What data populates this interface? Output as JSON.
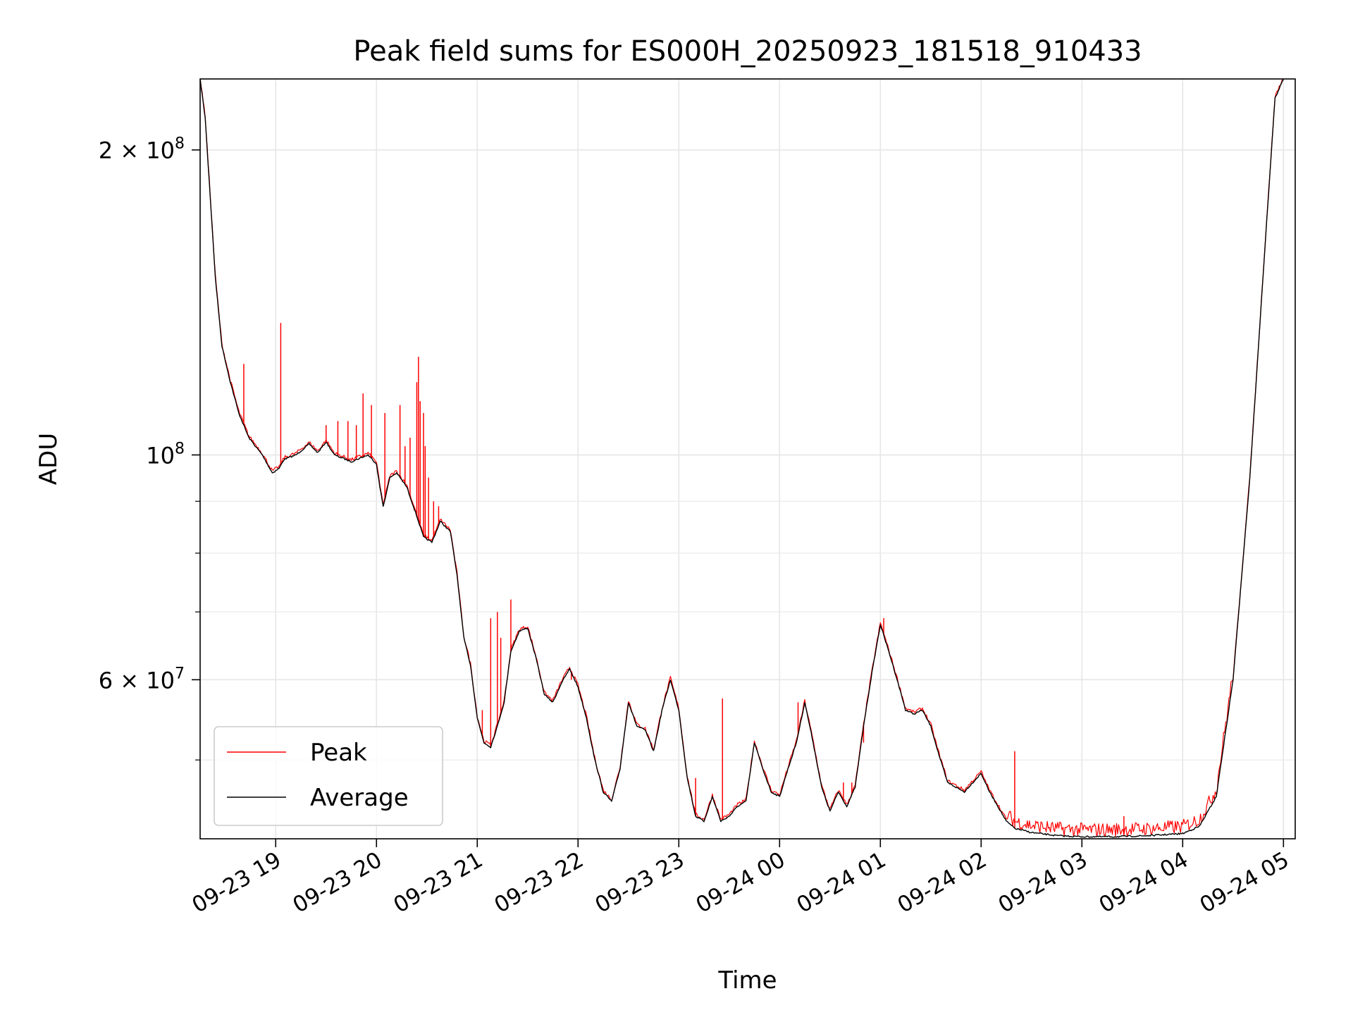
{
  "chart_data": {
    "type": "line",
    "title": "Peak field sums for ES000H_20250923_181518_910433",
    "xlabel": "Time",
    "ylabel": "ADU",
    "y_scale": "log",
    "ylim": [
      41800000,
      235000000
    ],
    "xlim": [
      "2025-09-23 18:15",
      "2025-09-24 05:07"
    ],
    "x_ticks": [
      {
        "t": "2025-09-23 19:00",
        "label": "09-23 19"
      },
      {
        "t": "2025-09-23 20:00",
        "label": "09-23 20"
      },
      {
        "t": "2025-09-23 21:00",
        "label": "09-23 21"
      },
      {
        "t": "2025-09-23 22:00",
        "label": "09-23 22"
      },
      {
        "t": "2025-09-23 23:00",
        "label": "09-23 23"
      },
      {
        "t": "2025-09-24 00:00",
        "label": "09-24 00"
      },
      {
        "t": "2025-09-24 01:00",
        "label": "09-24 01"
      },
      {
        "t": "2025-09-24 02:00",
        "label": "09-24 02"
      },
      {
        "t": "2025-09-24 03:00",
        "label": "09-24 03"
      },
      {
        "t": "2025-09-24 04:00",
        "label": "09-24 04"
      },
      {
        "t": "2025-09-24 05:00",
        "label": "09-24 05"
      }
    ],
    "y_major_ticks": [
      {
        "value": 200000000,
        "mantissa": "2",
        "exponent": "8"
      },
      {
        "value": 100000000,
        "mantissa": "",
        "exponent": "8"
      },
      {
        "value": 60000000,
        "mantissa": "6",
        "exponent": "7"
      }
    ],
    "y_minor_ticks": [
      50000000,
      70000000,
      80000000,
      90000000
    ],
    "grid": true,
    "legend": {
      "position": "lower-left"
    },
    "series": [
      {
        "name": "Average",
        "color": "#000000",
        "points": [
          [
            "2025-09-23 18:15",
            235000000
          ],
          [
            "2025-09-23 18:18",
            215000000
          ],
          [
            "2025-09-23 18:21",
            180000000
          ],
          [
            "2025-09-23 18:24",
            150000000
          ],
          [
            "2025-09-23 18:28",
            128000000
          ],
          [
            "2025-09-23 18:33",
            118000000
          ],
          [
            "2025-09-23 18:38",
            110000000
          ],
          [
            "2025-09-23 18:44",
            104000000
          ],
          [
            "2025-09-23 18:52",
            100000000
          ],
          [
            "2025-09-23 18:58",
            96000000
          ],
          [
            "2025-09-23 19:02",
            97000000
          ],
          [
            "2025-09-23 19:05",
            99000000
          ],
          [
            "2025-09-23 19:12",
            100000000
          ],
          [
            "2025-09-23 19:20",
            102500000
          ],
          [
            "2025-09-23 19:25",
            100500000
          ],
          [
            "2025-09-23 19:30",
            103000000
          ],
          [
            "2025-09-23 19:35",
            100000000
          ],
          [
            "2025-09-23 19:45",
            98500000
          ],
          [
            "2025-09-23 19:55",
            100000000
          ],
          [
            "2025-09-23 20:00",
            98000000
          ],
          [
            "2025-09-23 20:02",
            93000000
          ],
          [
            "2025-09-23 20:04",
            89000000
          ],
          [
            "2025-09-23 20:08",
            95000000
          ],
          [
            "2025-09-23 20:12",
            96000000
          ],
          [
            "2025-09-23 20:18",
            93000000
          ],
          [
            "2025-09-23 20:22",
            89000000
          ],
          [
            "2025-09-23 20:25",
            86000000
          ],
          [
            "2025-09-23 20:28",
            83000000
          ],
          [
            "2025-09-23 20:33",
            82000000
          ],
          [
            "2025-09-23 20:38",
            86000000
          ],
          [
            "2025-09-23 20:44",
            84000000
          ],
          [
            "2025-09-23 20:48",
            76000000
          ],
          [
            "2025-09-23 20:52",
            66000000
          ],
          [
            "2025-09-23 20:56",
            62000000
          ],
          [
            "2025-09-23 21:00",
            55000000
          ],
          [
            "2025-09-23 21:04",
            52000000
          ],
          [
            "2025-09-23 21:08",
            51500000
          ],
          [
            "2025-09-23 21:12",
            54000000
          ],
          [
            "2025-09-23 21:16",
            57000000
          ],
          [
            "2025-09-23 21:20",
            64000000
          ],
          [
            "2025-09-23 21:25",
            67000000
          ],
          [
            "2025-09-23 21:30",
            67500000
          ],
          [
            "2025-09-23 21:35",
            63000000
          ],
          [
            "2025-09-23 21:40",
            58000000
          ],
          [
            "2025-09-23 21:45",
            57000000
          ],
          [
            "2025-09-23 21:50",
            59500000
          ],
          [
            "2025-09-23 21:55",
            61500000
          ],
          [
            "2025-09-23 22:00",
            59000000
          ],
          [
            "2025-09-23 22:05",
            55000000
          ],
          [
            "2025-09-23 22:10",
            50000000
          ],
          [
            "2025-09-23 22:15",
            46500000
          ],
          [
            "2025-09-23 22:20",
            45500000
          ],
          [
            "2025-09-23 22:25",
            49000000
          ],
          [
            "2025-09-23 22:30",
            57000000
          ],
          [
            "2025-09-23 22:35",
            54000000
          ],
          [
            "2025-09-23 22:40",
            53500000
          ],
          [
            "2025-09-23 22:45",
            51000000
          ],
          [
            "2025-09-23 22:50",
            56000000
          ],
          [
            "2025-09-23 22:55",
            60000000
          ],
          [
            "2025-09-23 23:00",
            56000000
          ],
          [
            "2025-09-23 23:05",
            48000000
          ],
          [
            "2025-09-23 23:10",
            44000000
          ],
          [
            "2025-09-23 23:15",
            43500000
          ],
          [
            "2025-09-23 23:20",
            46000000
          ],
          [
            "2025-09-23 23:25",
            43500000
          ],
          [
            "2025-09-23 23:30",
            44000000
          ],
          [
            "2025-09-23 23:35",
            45000000
          ],
          [
            "2025-09-23 23:40",
            45500000
          ],
          [
            "2025-09-23 23:45",
            52000000
          ],
          [
            "2025-09-23 23:50",
            49000000
          ],
          [
            "2025-09-23 23:55",
            46500000
          ],
          [
            "2025-09-24 00:00",
            46000000
          ],
          [
            "2025-09-24 00:05",
            49000000
          ],
          [
            "2025-09-24 00:10",
            52000000
          ],
          [
            "2025-09-24 00:15",
            57000000
          ],
          [
            "2025-09-24 00:20",
            52000000
          ],
          [
            "2025-09-24 00:25",
            47000000
          ],
          [
            "2025-09-24 00:30",
            44500000
          ],
          [
            "2025-09-24 00:35",
            46500000
          ],
          [
            "2025-09-24 00:40",
            45000000
          ],
          [
            "2025-09-24 00:45",
            47000000
          ],
          [
            "2025-09-24 00:50",
            54000000
          ],
          [
            "2025-09-24 00:55",
            61000000
          ],
          [
            "2025-09-24 01:00",
            68000000
          ],
          [
            "2025-09-24 01:05",
            64000000
          ],
          [
            "2025-09-24 01:10",
            60000000
          ],
          [
            "2025-09-24 01:15",
            56000000
          ],
          [
            "2025-09-24 01:20",
            55500000
          ],
          [
            "2025-09-24 01:25",
            56000000
          ],
          [
            "2025-09-24 01:30",
            54000000
          ],
          [
            "2025-09-24 01:35",
            50500000
          ],
          [
            "2025-09-24 01:40",
            47500000
          ],
          [
            "2025-09-24 01:45",
            47000000
          ],
          [
            "2025-09-24 01:50",
            46500000
          ],
          [
            "2025-09-24 01:55",
            47500000
          ],
          [
            "2025-09-24 02:00",
            48500000
          ],
          [
            "2025-09-24 02:05",
            46500000
          ],
          [
            "2025-09-24 02:10",
            45000000
          ],
          [
            "2025-09-24 02:15",
            43500000
          ],
          [
            "2025-09-24 02:20",
            42800000
          ],
          [
            "2025-09-24 02:30",
            42400000
          ],
          [
            "2025-09-24 02:45",
            42100000
          ],
          [
            "2025-09-24 03:00",
            42000000
          ],
          [
            "2025-09-24 03:20",
            42000000
          ],
          [
            "2025-09-24 03:40",
            42100000
          ],
          [
            "2025-09-24 04:00",
            42300000
          ],
          [
            "2025-09-24 04:10",
            43000000
          ],
          [
            "2025-09-24 04:20",
            46000000
          ],
          [
            "2025-09-24 04:30",
            60000000
          ],
          [
            "2025-09-24 04:40",
            95000000
          ],
          [
            "2025-09-24 04:50",
            170000000
          ],
          [
            "2025-09-24 04:55",
            225000000
          ],
          [
            "2025-09-24 05:00",
            235000000
          ]
        ]
      },
      {
        "name": "Peak",
        "color": "#ff0000",
        "spikes": [
          [
            "2025-09-23 18:41",
            123000000
          ],
          [
            "2025-09-23 19:03",
            135000000
          ],
          [
            "2025-09-23 19:30",
            107000000
          ],
          [
            "2025-09-23 19:37",
            108000000
          ],
          [
            "2025-09-23 19:43",
            108000000
          ],
          [
            "2025-09-23 19:48",
            107000000
          ],
          [
            "2025-09-23 19:52",
            115000000
          ],
          [
            "2025-09-23 19:57",
            112000000
          ],
          [
            "2025-09-23 20:05",
            110000000
          ],
          [
            "2025-09-23 20:14",
            112000000
          ],
          [
            "2025-09-23 20:17",
            102000000
          ],
          [
            "2025-09-23 20:20",
            104000000
          ],
          [
            "2025-09-23 20:24",
            118000000
          ],
          [
            "2025-09-23 20:25",
            125000000
          ],
          [
            "2025-09-23 20:26",
            113000000
          ],
          [
            "2025-09-23 20:28",
            110000000
          ],
          [
            "2025-09-23 20:29",
            102000000
          ],
          [
            "2025-09-23 20:31",
            95000000
          ],
          [
            "2025-09-23 20:34",
            90000000
          ],
          [
            "2025-09-23 20:37",
            89000000
          ],
          [
            "2025-09-23 21:03",
            56000000
          ],
          [
            "2025-09-23 21:08",
            69000000
          ],
          [
            "2025-09-23 21:12",
            70000000
          ],
          [
            "2025-09-23 21:14",
            66000000
          ],
          [
            "2025-09-23 21:20",
            72000000
          ],
          [
            "2025-09-23 21:56",
            60000000
          ],
          [
            "2025-09-23 23:10",
            48000000
          ],
          [
            "2025-09-23 23:26",
            57500000
          ],
          [
            "2025-09-24 00:11",
            57000000
          ],
          [
            "2025-09-24 00:38",
            47500000
          ],
          [
            "2025-09-24 00:43",
            47500000
          ],
          [
            "2025-09-24 00:50",
            52000000
          ],
          [
            "2025-09-24 01:02",
            69000000
          ],
          [
            "2025-09-24 02:20",
            51000000
          ],
          [
            "2025-09-24 03:25",
            44000000
          ]
        ]
      }
    ]
  }
}
